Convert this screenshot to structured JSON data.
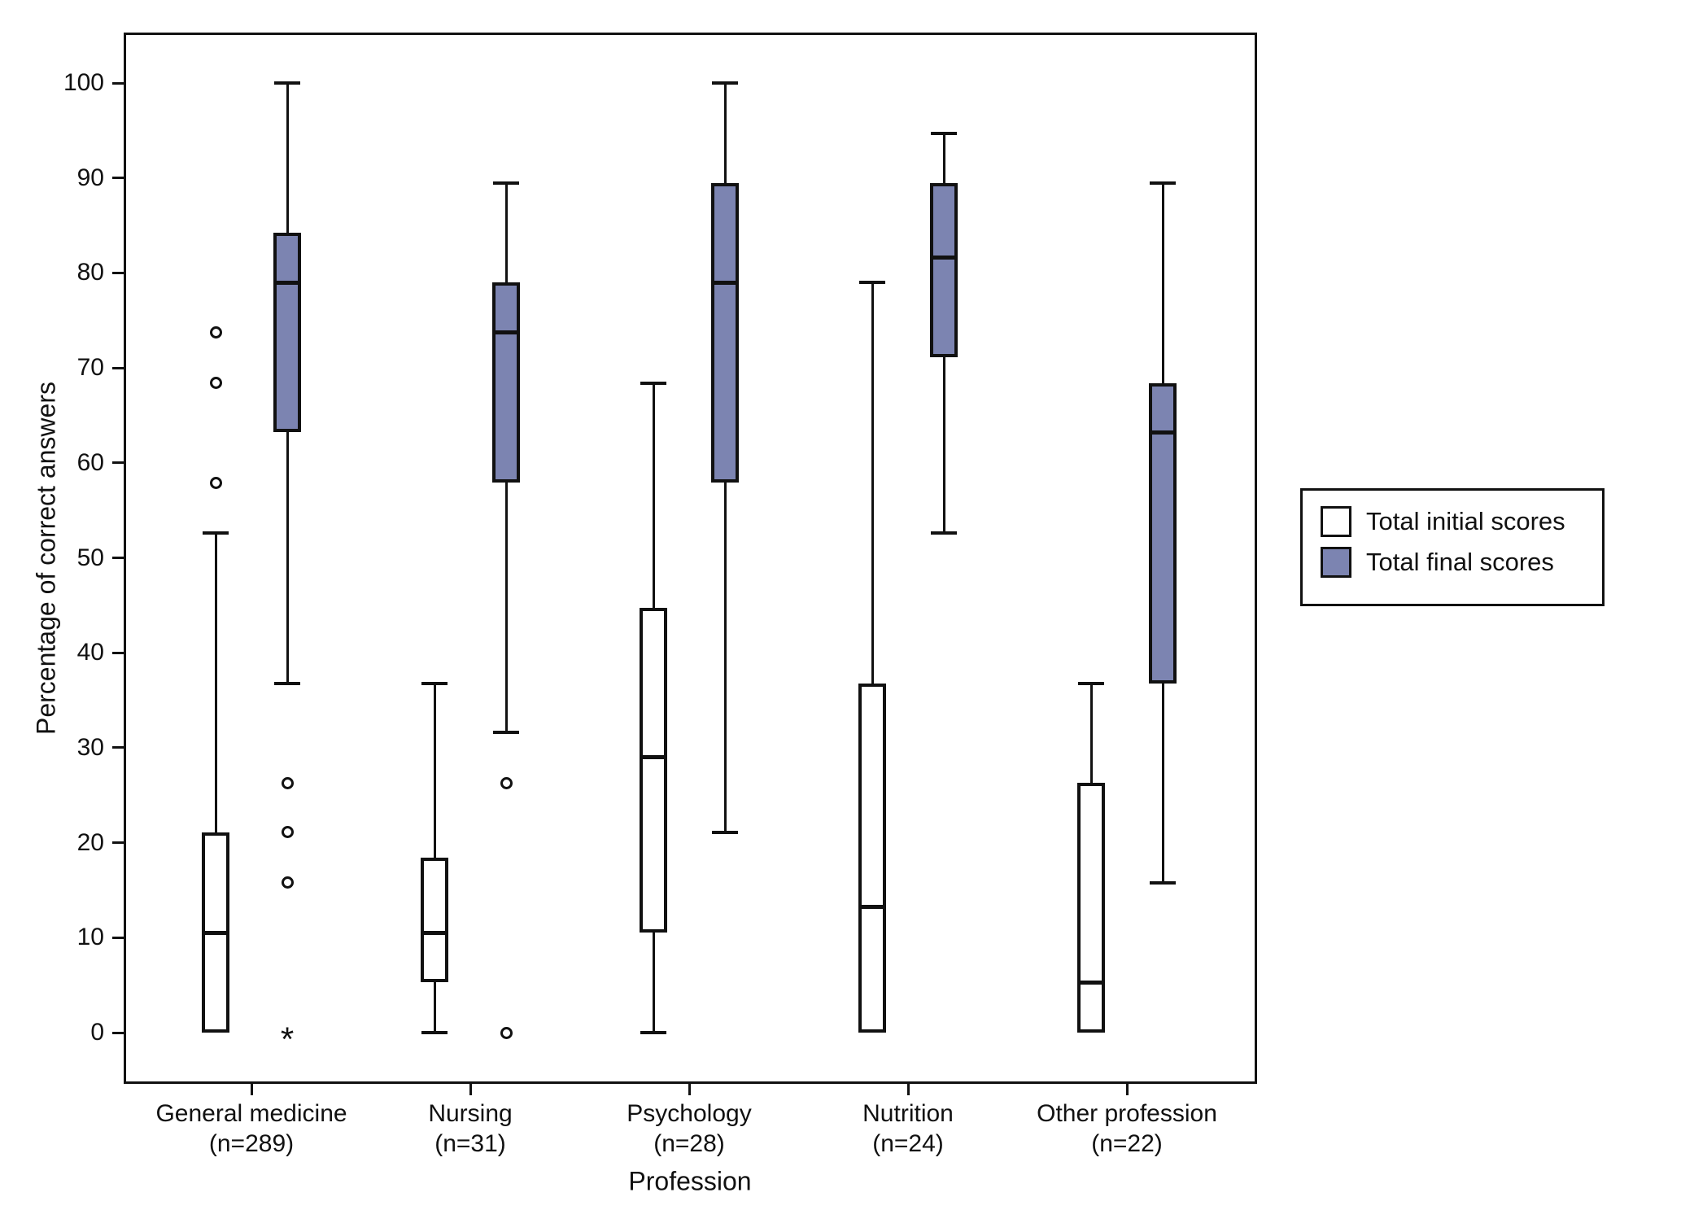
{
  "chart_data": {
    "type": "boxplot",
    "title": "",
    "xlabel": "Profession",
    "ylabel": "Percentage of correct answers",
    "ylim": [
      0,
      100
    ],
    "yticks": [
      0,
      10,
      20,
      30,
      40,
      50,
      60,
      70,
      80,
      90,
      100
    ],
    "grid": "off",
    "legend_position": "right",
    "marker_legend": {
      "outlier": "circle",
      "extreme": "asterisk"
    },
    "colors": {
      "line": "#111111",
      "initial_fill": "#ffffff",
      "final_fill": "#7c84b1"
    },
    "categories": [
      {
        "label": "General medicine",
        "n": "(n=289)"
      },
      {
        "label": "Nursing",
        "n": "(n=31)"
      },
      {
        "label": "Psychology",
        "n": "(n=28)"
      },
      {
        "label": "Nutrition",
        "n": "(n=24)"
      },
      {
        "label": "Other profession",
        "n": "(n=22)"
      }
    ],
    "series": [
      {
        "name": "Total initial scores",
        "fill": "#ffffff",
        "boxes": [
          {
            "low": 0,
            "q1": 0,
            "median": 10.5,
            "q3": 21.1,
            "high": 52.6,
            "outliers": [
              57.9,
              68.4,
              73.7
            ],
            "extremes": []
          },
          {
            "low": 0,
            "q1": 5.3,
            "median": 10.5,
            "q3": 18.4,
            "high": 36.8,
            "outliers": [],
            "extremes": []
          },
          {
            "low": 0,
            "q1": 10.5,
            "median": 29.0,
            "q3": 44.7,
            "high": 68.4,
            "outliers": [],
            "extremes": []
          },
          {
            "low": 0,
            "q1": 0,
            "median": 13.2,
            "q3": 36.8,
            "high": 79.0,
            "outliers": [],
            "extremes": []
          },
          {
            "low": 0,
            "q1": 0,
            "median": 5.3,
            "q3": 26.3,
            "high": 36.8,
            "outliers": [],
            "extremes": []
          }
        ]
      },
      {
        "name": "Total final scores",
        "fill": "#7c84b1",
        "boxes": [
          {
            "low": 36.8,
            "q1": 63.2,
            "median": 79.0,
            "q3": 84.2,
            "high": 100,
            "outliers": [
              26.3,
              21.1,
              15.8
            ],
            "extremes": [
              0
            ]
          },
          {
            "low": 31.6,
            "q1": 57.9,
            "median": 73.7,
            "q3": 79.0,
            "high": 89.5,
            "outliers": [
              26.3,
              0
            ],
            "extremes": []
          },
          {
            "low": 21.1,
            "q1": 57.9,
            "median": 79.0,
            "q3": 89.5,
            "high": 100,
            "outliers": [],
            "extremes": []
          },
          {
            "low": 52.6,
            "q1": 71.1,
            "median": 81.6,
            "q3": 89.5,
            "high": 94.7,
            "outliers": [],
            "extremes": []
          },
          {
            "low": 15.8,
            "q1": 36.8,
            "median": 63.2,
            "q3": 68.4,
            "high": 89.5,
            "outliers": [],
            "extremes": []
          }
        ]
      }
    ]
  }
}
